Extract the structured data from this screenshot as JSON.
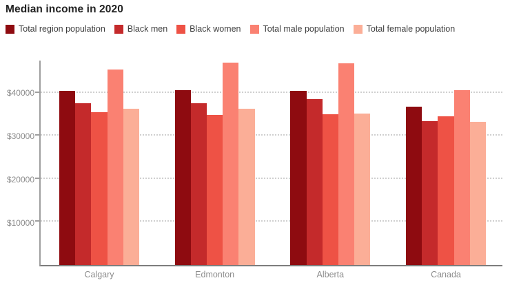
{
  "title": "Median income in 2020",
  "colors": {
    "background": "#ffffff",
    "title_text": "#222222",
    "legend_text": "#3d3d3d",
    "axis_text": "#8c8c8c",
    "axis_line": "#9e9e9e",
    "baseline": "#7d7d7d",
    "gridline": "#cfcfcf"
  },
  "chart_data": {
    "type": "bar",
    "title": "Median income in 2020",
    "categories": [
      "Calgary",
      "Edmonton",
      "Alberta",
      "Canada"
    ],
    "series": [
      {
        "name": "Total region population",
        "color": "#8e0b10",
        "values": [
          40400,
          40700,
          40400,
          36800
        ]
      },
      {
        "name": "Black men",
        "color": "#c42a2b",
        "values": [
          37600,
          37600,
          38600,
          33400
        ]
      },
      {
        "name": "Black women",
        "color": "#ee5245",
        "values": [
          35500,
          34800,
          35100,
          34600
        ]
      },
      {
        "name": "Total male population",
        "color": "#fa8172",
        "values": [
          45500,
          47100,
          46900,
          40700
        ]
      },
      {
        "name": "Total female population",
        "color": "#fbae97",
        "values": [
          36300,
          36300,
          35200,
          33300
        ]
      }
    ],
    "y_ticks": [
      10000,
      20000,
      30000,
      40000
    ],
    "y_tick_labels": [
      "$10000",
      "$20000",
      "$30000",
      "$40000"
    ],
    "ylim": [
      0,
      47500
    ],
    "xlabel": "",
    "ylabel": "",
    "grid": "horizontal-dotted",
    "legend_position": "top"
  }
}
